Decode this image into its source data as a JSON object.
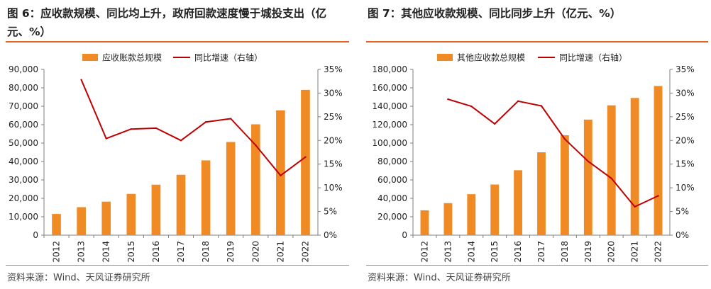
{
  "colors": {
    "bar": "#f08a24",
    "line": "#c00000",
    "accent": "#e8641c",
    "axis": "#7f7f7f"
  },
  "charts": [
    {
      "figure_title": "图 6：应收款规模、同比均上升，政府回款速度慢于城投支出（亿元、%）",
      "source": "资料来源：Wind、天风证券研究所",
      "chart_data": {
        "type": "bar",
        "categories": [
          "2012",
          "2013",
          "2014",
          "2015",
          "2016",
          "2017",
          "2018",
          "2019",
          "2020",
          "2021",
          "2022"
        ],
        "series": [
          {
            "name": "应收账款总规模",
            "kind": "bar",
            "axis": "left",
            "values": [
              11500,
              15200,
              18200,
              22400,
              27400,
              32800,
              40600,
              50600,
              60200,
              67800,
              78900
            ]
          },
          {
            "name": "同比增速（右轴）",
            "kind": "line",
            "axis": "right",
            "values": [
              null,
              32.8,
              20.4,
              22.4,
              22.6,
              20.0,
              23.9,
              24.6,
              19.0,
              12.6,
              16.5
            ]
          }
        ],
        "left_axis": {
          "min": 0,
          "max": 90000,
          "step": 10000,
          "tick_labels": [
            "0",
            "10,000",
            "20,000",
            "30,000",
            "40,000",
            "50,000",
            "60,000",
            "70,000",
            "80,000",
            "90,000"
          ]
        },
        "right_axis": {
          "min": 0,
          "max": 35,
          "step": 5,
          "tick_labels": [
            "0%",
            "5%",
            "10%",
            "15%",
            "20%",
            "25%",
            "30%",
            "35%"
          ]
        },
        "legend_position": "top"
      }
    },
    {
      "figure_title": "图 7：其他应收款规模、同比同步上升（亿元、%）",
      "source": "资料来源：Wind、天风证券研究所",
      "chart_data": {
        "type": "bar",
        "categories": [
          "2012",
          "2013",
          "2014",
          "2015",
          "2016",
          "2017",
          "2018",
          "2019",
          "2020",
          "2021",
          "2022"
        ],
        "series": [
          {
            "name": "其他应收款总规模",
            "kind": "bar",
            "axis": "left",
            "values": [
              27000,
              34800,
              44500,
              55000,
              70500,
              90000,
              108500,
              125500,
              141000,
              149000,
              162000
            ]
          },
          {
            "name": "同比增速（右轴）",
            "kind": "line",
            "axis": "right",
            "values": [
              null,
              28.7,
              27.2,
              23.5,
              28.3,
              27.3,
              20.3,
              15.6,
              12.0,
              6.0,
              8.3
            ]
          }
        ],
        "left_axis": {
          "min": 0,
          "max": 180000,
          "step": 20000,
          "tick_labels": [
            "0",
            "20,000",
            "40,000",
            "60,000",
            "80,000",
            "100,000",
            "120,000",
            "140,000",
            "160,000",
            "180,000"
          ]
        },
        "right_axis": {
          "min": 0,
          "max": 35,
          "step": 5,
          "tick_labels": [
            "0%",
            "5%",
            "10%",
            "15%",
            "20%",
            "25%",
            "30%",
            "35%"
          ]
        },
        "legend_position": "top"
      }
    }
  ]
}
